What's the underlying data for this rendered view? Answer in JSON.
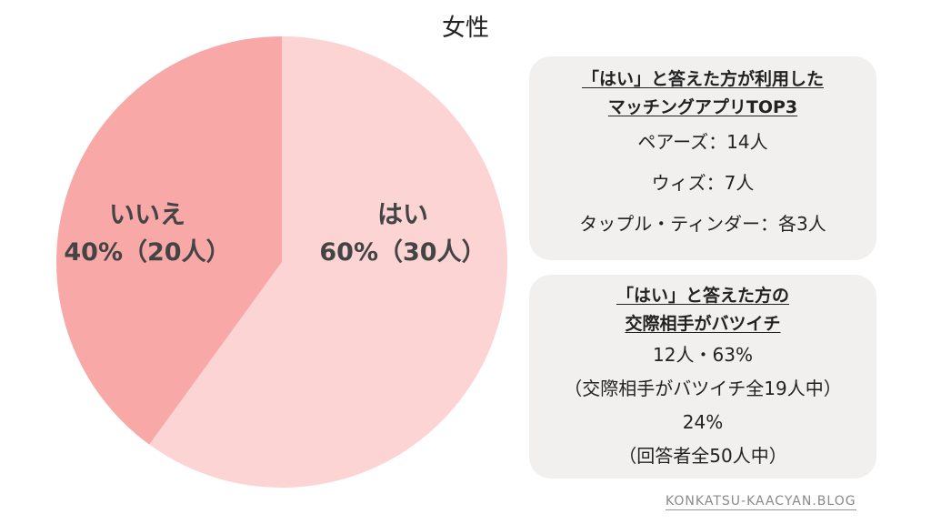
{
  "title": "女性",
  "chart_data": {
    "type": "pie",
    "title": "女性",
    "slices": [
      {
        "key": "yes",
        "name": "はい",
        "percent": 60,
        "label_value": "60%（30人）",
        "count": 30,
        "color": "#fdd4d4"
      },
      {
        "key": "no",
        "name": "いいえ",
        "percent": 40,
        "label_value": "40%（20人）",
        "count": 20,
        "color": "#f9a8a8"
      }
    ],
    "total_count": 50
  },
  "info_box_1": {
    "heading_lines": [
      "「はい」と答えた方が利用した",
      "マッチングアプリTOP3"
    ],
    "lines": [
      "ペアーズ：14人",
      "ウィズ：7人",
      "タップル・ティンダー：各3人"
    ]
  },
  "info_box_2": {
    "heading_lines": [
      "「はい」と答えた方の",
      "交際相手がバツイチ"
    ],
    "lines": [
      "12人・63%",
      "（交際相手がバツイチ全19人中）",
      "24%",
      "（回答者全50人中）"
    ]
  },
  "footer": "KONKATSU-KAACYAN.BLOG"
}
